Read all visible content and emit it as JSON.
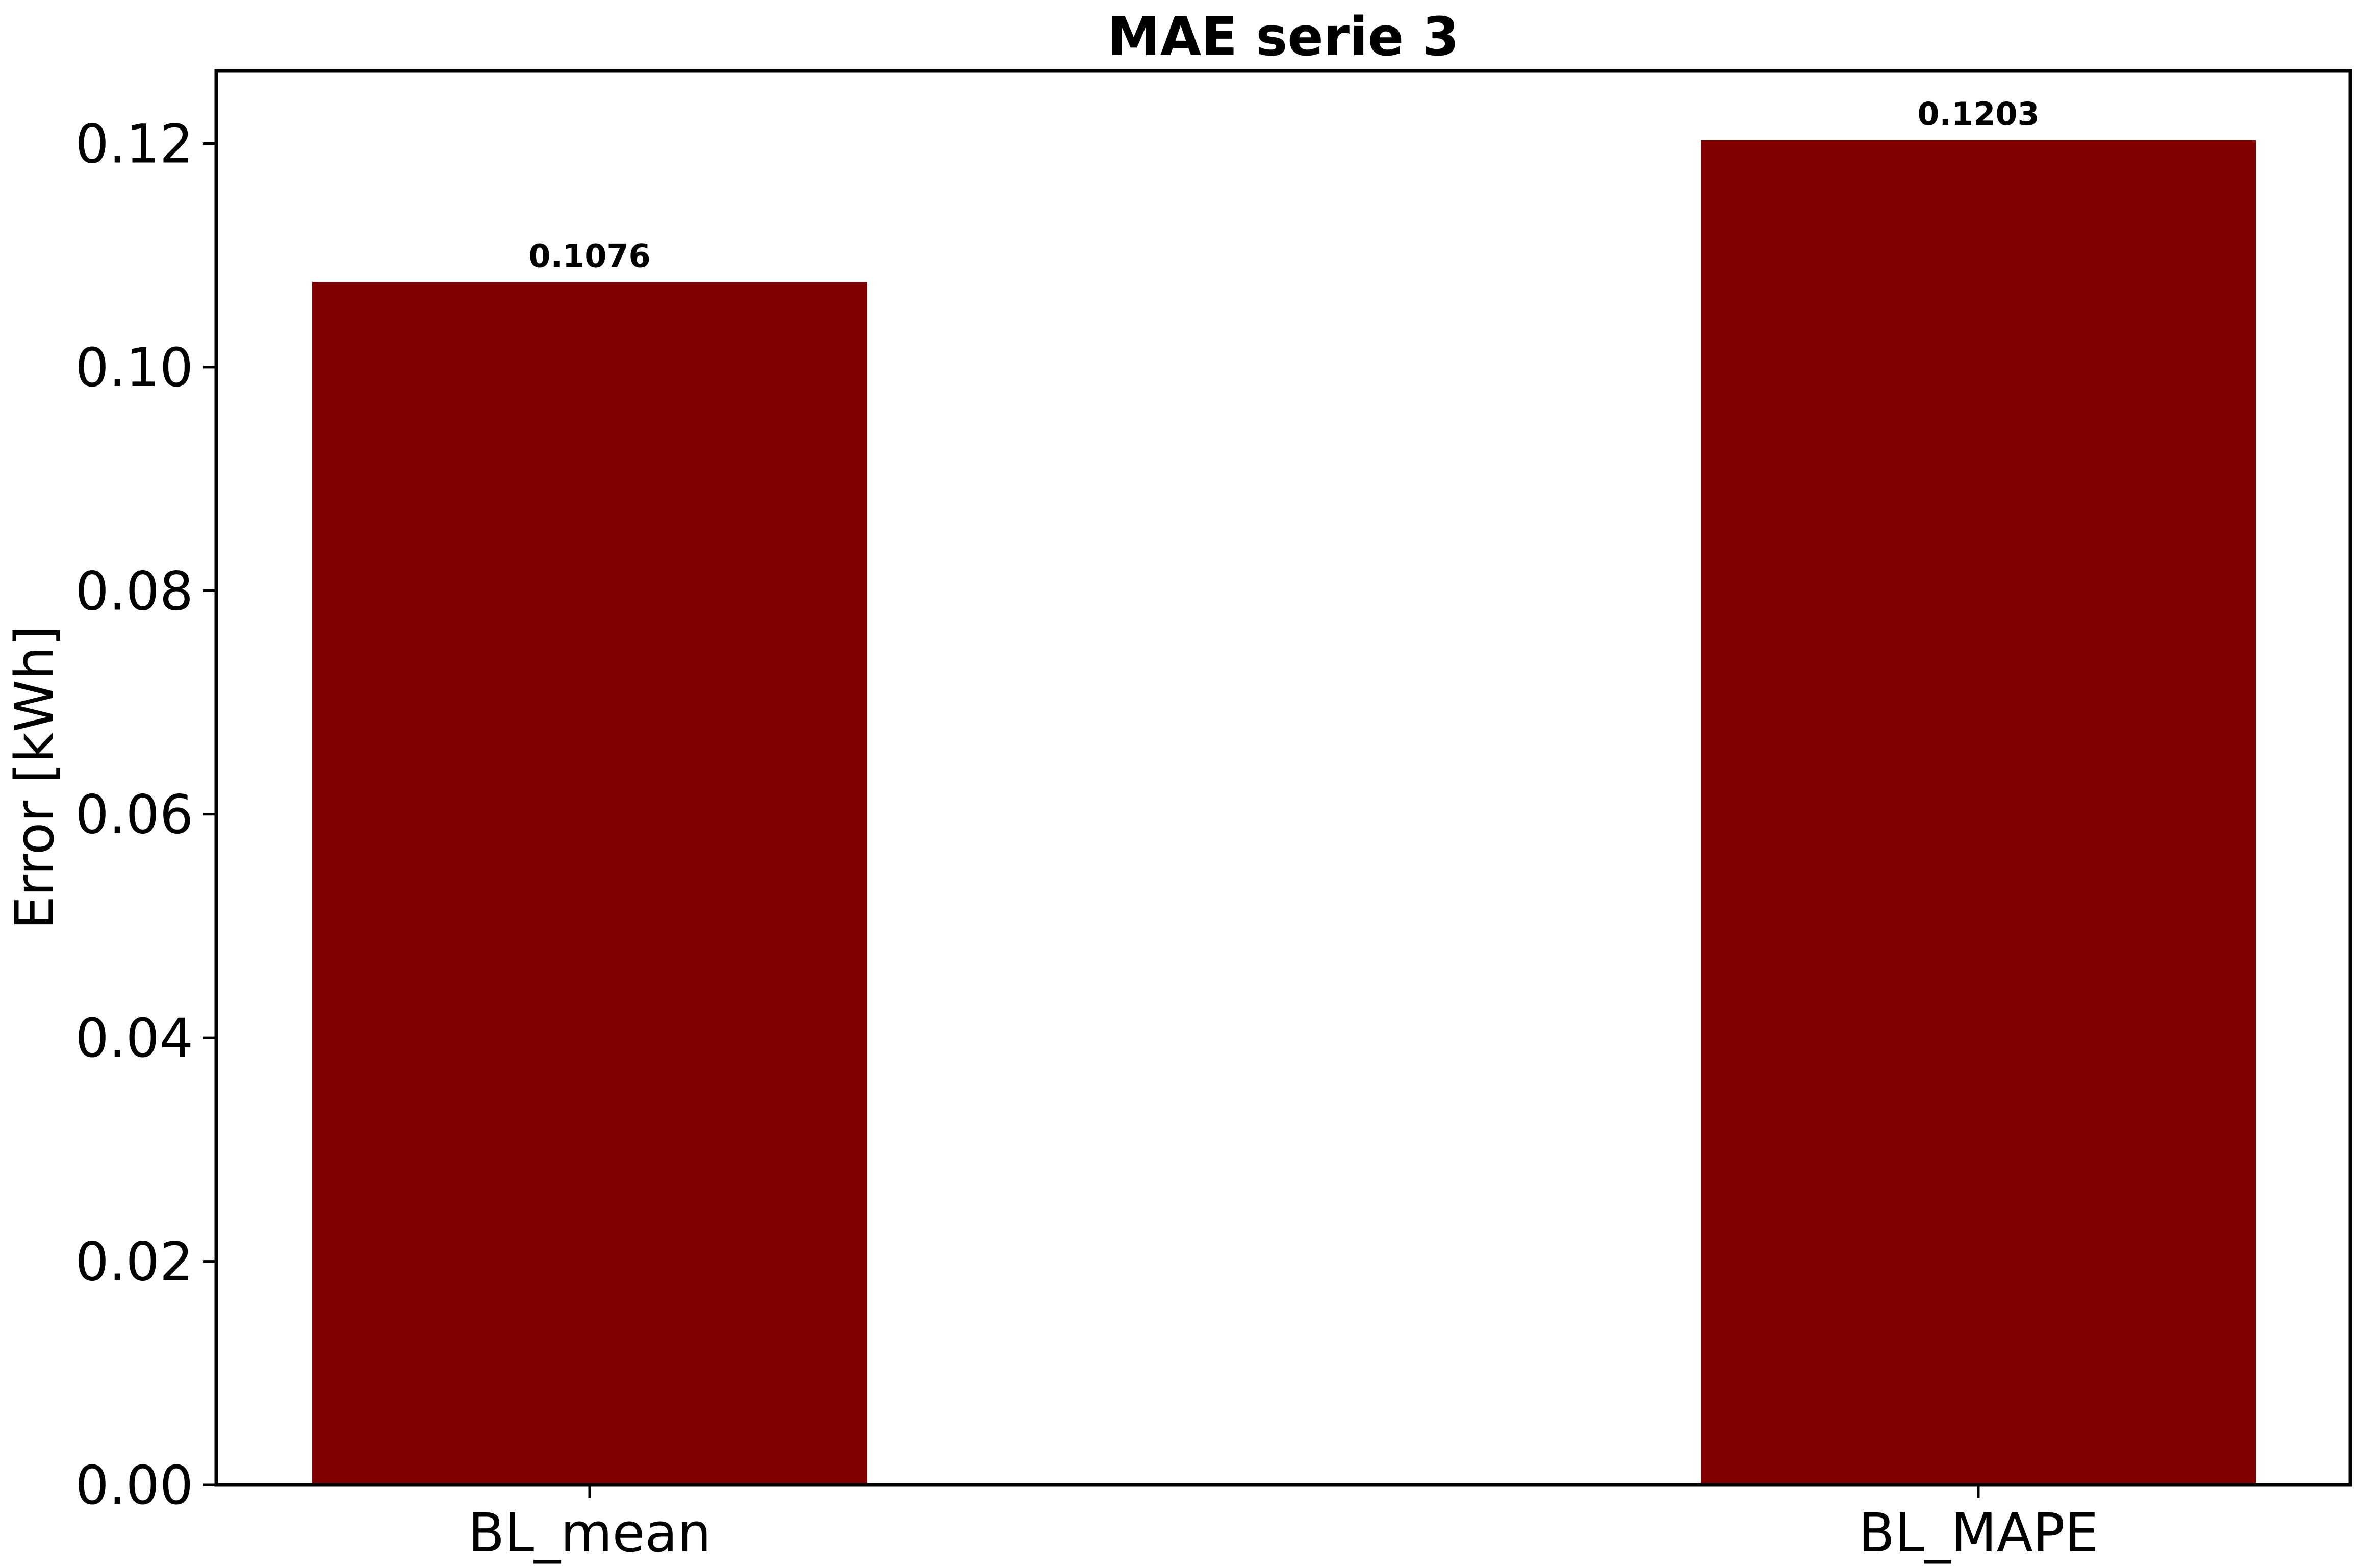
{
  "chart_data": {
    "type": "bar",
    "title": "MAE serie 3",
    "xlabel": "",
    "ylabel": "Error [kWh]",
    "categories": [
      "BL_mean",
      "BL_MAPE"
    ],
    "values": [
      0.1076,
      0.1203
    ],
    "value_labels": [
      "0.1076",
      "0.1203"
    ],
    "ylim": [
      0,
      0.1265
    ],
    "yticks": [
      0.0,
      0.02,
      0.04,
      0.06,
      0.08,
      0.1,
      0.12
    ],
    "ytick_labels": [
      "0.00",
      "0.02",
      "0.04",
      "0.06",
      "0.08",
      "0.10",
      "0.12"
    ],
    "bar_color": "#800000",
    "grid": false,
    "legend": "none"
  }
}
